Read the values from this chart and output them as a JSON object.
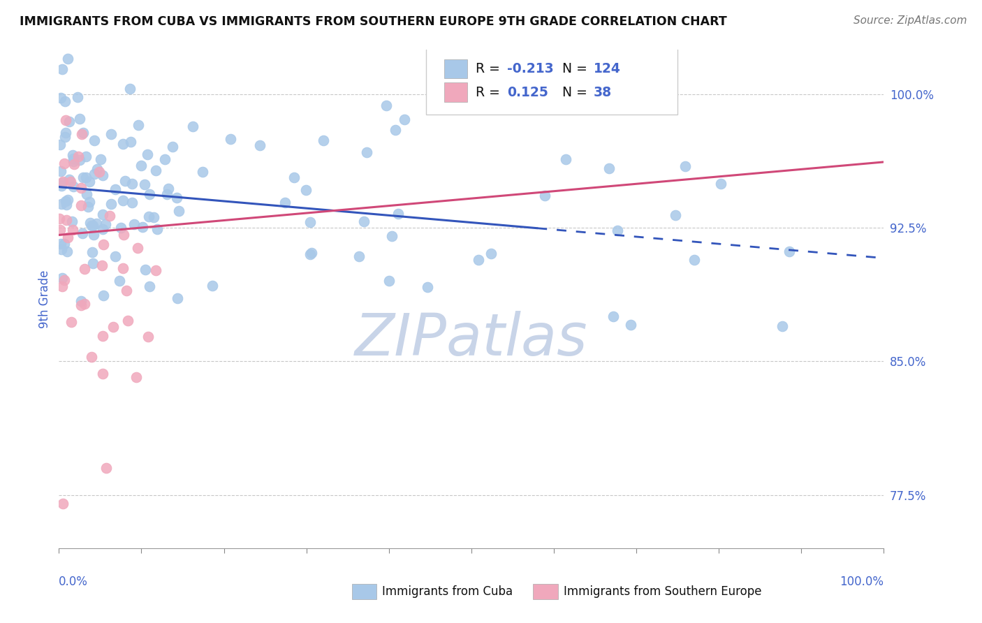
{
  "title": "IMMIGRANTS FROM CUBA VS IMMIGRANTS FROM SOUTHERN EUROPE 9TH GRADE CORRELATION CHART",
  "source": "Source: ZipAtlas.com",
  "ylabel": "9th Grade",
  "x_label_bottom_left": "0.0%",
  "x_label_bottom_right": "100.0%",
  "y_ticks": [
    0.775,
    0.85,
    0.925,
    1.0
  ],
  "y_tick_labels": [
    "77.5%",
    "85.0%",
    "92.5%",
    "100.0%"
  ],
  "xlim": [
    0.0,
    1.0
  ],
  "ylim": [
    0.745,
    1.025
  ],
  "blue_color": "#A8C8E8",
  "pink_color": "#F0A8BC",
  "blue_line_color": "#3355BB",
  "pink_line_color": "#D04878",
  "axis_label_color": "#4466CC",
  "tick_color": "#4466CC",
  "grid_color": "#C8C8C8",
  "watermark": "ZIPatlas",
  "watermark_color": "#C8D4E8",
  "legend_R1": "-0.213",
  "legend_N1": "124",
  "legend_R2": "0.125",
  "legend_N2": "38",
  "blue_trend_x_start": 0.0,
  "blue_trend_x_solid_end": 0.58,
  "blue_trend_x_dashed_end": 1.0,
  "blue_trend_y_start": 0.948,
  "blue_trend_y_end": 0.908,
  "pink_trend_x_start": 0.0,
  "pink_trend_x_end": 1.0,
  "pink_trend_y_start": 0.921,
  "pink_trend_y_end": 0.962,
  "background_color": "#FFFFFF",
  "legend_text_color": "#111111",
  "legend_value_color": "#4466CC"
}
